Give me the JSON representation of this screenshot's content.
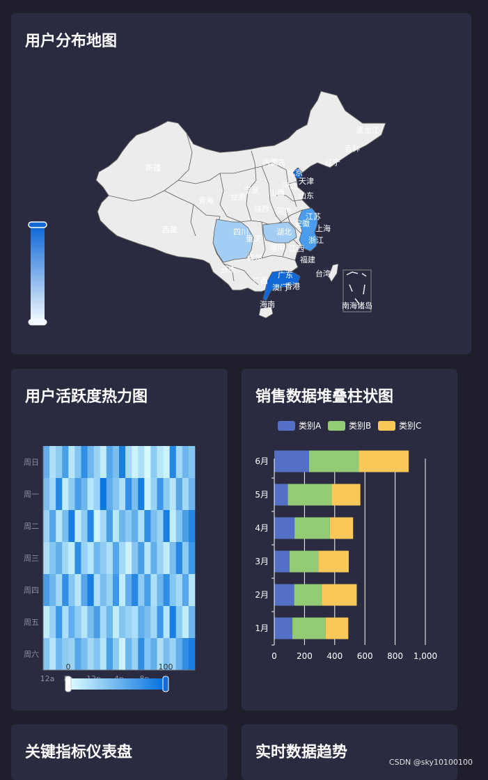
{
  "cards": {
    "map_title": "用户分布地图",
    "heatmap_title": "用户活跃度热力图",
    "bar_title": "销售数据堆叠柱状图",
    "gauge_title": "关键指标仪表盘",
    "trend_title": "实时数据趋势"
  },
  "map": {
    "provinces": [
      {
        "name": "黑龙江",
        "level": 0
      },
      {
        "name": "吉林",
        "level": 0
      },
      {
        "name": "辽宁",
        "level": 0
      },
      {
        "name": "内蒙古",
        "level": 0
      },
      {
        "name": "北京",
        "level": 3
      },
      {
        "name": "天津",
        "level": 0
      },
      {
        "name": "河北",
        "level": 0
      },
      {
        "name": "山西",
        "level": 0
      },
      {
        "name": "山东",
        "level": 0
      },
      {
        "name": "新疆",
        "level": 0
      },
      {
        "name": "宁夏",
        "level": 0
      },
      {
        "name": "甘肃",
        "level": 0
      },
      {
        "name": "青海",
        "level": 0
      },
      {
        "name": "陕西",
        "level": 0
      },
      {
        "name": "河南",
        "level": 0
      },
      {
        "name": "江苏",
        "level": 2
      },
      {
        "name": "上海",
        "level": 2
      },
      {
        "name": "浙江",
        "level": 2
      },
      {
        "name": "安徽",
        "level": 0
      },
      {
        "name": "湖北",
        "level": 1
      },
      {
        "name": "西藏",
        "level": 0
      },
      {
        "name": "四川",
        "level": 1
      },
      {
        "name": "重庆",
        "level": 0
      },
      {
        "name": "湖南",
        "level": 0
      },
      {
        "name": "江西",
        "level": 0
      },
      {
        "name": "福建",
        "level": 0
      },
      {
        "name": "贵州",
        "level": 0
      },
      {
        "name": "云南",
        "level": 0
      },
      {
        "name": "广西",
        "level": 0
      },
      {
        "name": "广东",
        "level": 3
      },
      {
        "name": "香港",
        "level": 0
      },
      {
        "name": "澳门",
        "level": 0
      },
      {
        "name": "台湾",
        "level": 0
      },
      {
        "name": "海南",
        "level": 0
      }
    ],
    "inset_label": "南海诸岛",
    "visual_map": {
      "high_label": "",
      "low_label": ""
    }
  },
  "colors": {
    "land": "#ececec",
    "border": "#5a5a5a",
    "level1": "#a3cdf2",
    "level2": "#4a9cee",
    "level3": "#1168d6",
    "series_a": "#5470c6",
    "series_b": "#91cc75",
    "series_c": "#fac858",
    "heat_low": "#e0ffff",
    "heat_high": "#006edd"
  },
  "heatmap": {
    "days": [
      "周日",
      "周一",
      "周二",
      "周三",
      "周四",
      "周五",
      "周六"
    ],
    "hour_ticks": [
      "12a",
      "8a",
      "12p",
      "4p",
      "8p"
    ],
    "columns": 24,
    "cells": [
      [
        60,
        25,
        40,
        70,
        20,
        45,
        80,
        55,
        35,
        15,
        65,
        50,
        90,
        30,
        10,
        25,
        5,
        40,
        20,
        10,
        85,
        30,
        55,
        45
      ],
      [
        50,
        30,
        85,
        15,
        40,
        70,
        55,
        20,
        35,
        95,
        60,
        45,
        25,
        80,
        50,
        90,
        10,
        35,
        75,
        40,
        20,
        65,
        30,
        55
      ],
      [
        35,
        65,
        20,
        50,
        90,
        15,
        40,
        85,
        10,
        30,
        70,
        20,
        55,
        40,
        60,
        25,
        80,
        50,
        35,
        90,
        15,
        45,
        70,
        85
      ],
      [
        25,
        45,
        60,
        30,
        15,
        80,
        35,
        20,
        55,
        40,
        25,
        65,
        30,
        10,
        45,
        70,
        20,
        60,
        35,
        15,
        50,
        85,
        40,
        75
      ],
      [
        70,
        55,
        30,
        80,
        45,
        20,
        65,
        90,
        25,
        50,
        35,
        75,
        15,
        60,
        85,
        40,
        70,
        25,
        55,
        80,
        45,
        30,
        65,
        20
      ],
      [
        15,
        35,
        75,
        25,
        60,
        40,
        20,
        50,
        70,
        30,
        55,
        15,
        45,
        35,
        25,
        60,
        50,
        30,
        75,
        20,
        90,
        40,
        15,
        55
      ],
      [
        45,
        20,
        55,
        40,
        35,
        65,
        50,
        30,
        45,
        20,
        70,
        40,
        10,
        55,
        35,
        80,
        45,
        60,
        25,
        50,
        35,
        60,
        80,
        90
      ]
    ],
    "scale_min": "0",
    "scale_max": "100"
  },
  "chart_data": {
    "type": "bar",
    "orientation": "horizontal",
    "stacked": true,
    "categories": [
      "1月",
      "2月",
      "3月",
      "4月",
      "5月",
      "6月"
    ],
    "series": [
      {
        "name": "类别A",
        "values": [
          120,
          132,
          101,
          134,
          90,
          230
        ]
      },
      {
        "name": "类别B",
        "values": [
          220,
          182,
          191,
          234,
          290,
          330
        ]
      },
      {
        "name": "类别C",
        "values": [
          150,
          232,
          201,
          154,
          190,
          330
        ]
      }
    ],
    "xlim": [
      0,
      1000
    ],
    "x_ticks": [
      "0",
      "200",
      "400",
      "600",
      "800",
      "1,000"
    ],
    "legend_position": "top"
  },
  "footer": {
    "watermark": "CSDN @sky10100100"
  }
}
